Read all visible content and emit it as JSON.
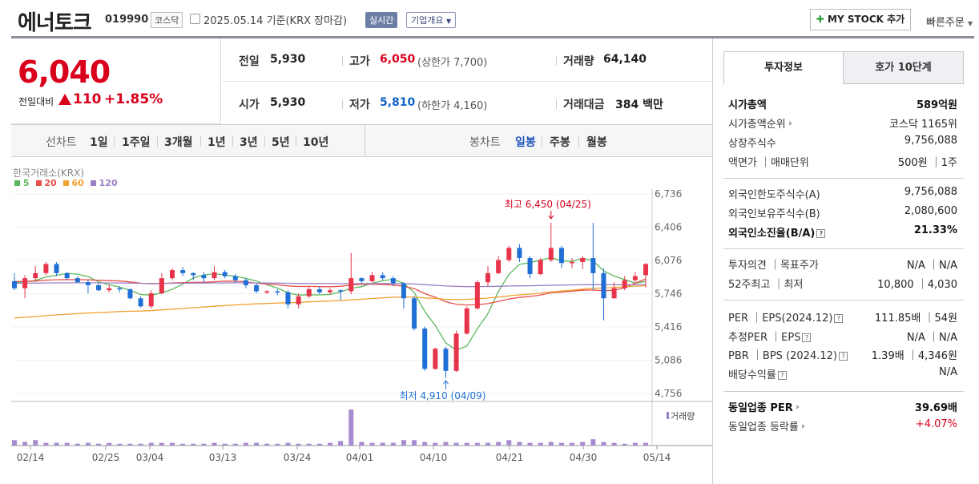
{
  "header": {
    "company_name": "에너토크",
    "code": "019990",
    "market": "코스닥",
    "date_text": "2025.05.14  기준(KRX 장마감)",
    "realtime_label": "실시간",
    "overview_label": "기업개요",
    "mystock_label": "MY STOCK 추가",
    "quickorder_label": "빠른주문"
  },
  "price": {
    "current": "6,040",
    "prev_label": "전일대비",
    "change_amount": "110",
    "change_percent": "+1.85%",
    "direction": "up"
  },
  "stats": {
    "prev_close_label": "전일",
    "prev_close": "5,930",
    "open_label": "시가",
    "open": "5,930",
    "high_label": "고가",
    "high": "6,050",
    "upper_limit": "(상한가 7,700)",
    "low_label": "저가",
    "low": "5,810",
    "lower_limit": "(하한가 4,160)",
    "volume_label": "거래량",
    "volume": "64,140",
    "value_label": "거래대금",
    "value": "384",
    "value_unit": "백만"
  },
  "toolbar": {
    "line_label": "선차트",
    "ranges": [
      "1일",
      "1주일",
      "3개월",
      "1년",
      "3년",
      "5년",
      "10년"
    ],
    "candle_label": "봉차트",
    "candle_periods": [
      "일봉",
      "주봉",
      "월봉"
    ],
    "active_candle": "일봉"
  },
  "chart_data": {
    "type": "candlestick",
    "source_label": "한국거래소(KRX)",
    "ma_legend": [
      {
        "name": "5",
        "color": "#5cb85c"
      },
      {
        "name": "20",
        "color": "#e8504a"
      },
      {
        "name": "60",
        "color": "#f0a030"
      },
      {
        "name": "120",
        "color": "#9b7fc4"
      }
    ],
    "y_ticks": [
      "6,736",
      "6,406",
      "6,076",
      "5,746",
      "5,416",
      "5,086",
      "4,756"
    ],
    "ylim": [
      4756,
      6736
    ],
    "x_ticks": [
      "02/14",
      "02/25",
      "03/04",
      "03/13",
      "03/24",
      "04/01",
      "04/10",
      "04/21",
      "04/30",
      "05/14"
    ],
    "high_annotation": "최고 6,450 (04/25)",
    "low_annotation": "최저 4,910 (04/09)",
    "volume_label": "거래량",
    "candles": [
      [
        5870,
        5800,
        5950,
        5780
      ],
      [
        5800,
        5900,
        5930,
        5700
      ],
      [
        5900,
        5950,
        6020,
        5880
      ],
      [
        5950,
        6040,
        6060,
        5930
      ],
      [
        6040,
        5950,
        6060,
        5920
      ],
      [
        5950,
        5900,
        5960,
        5880
      ],
      [
        5900,
        5860,
        5920,
        5850
      ],
      [
        5860,
        5830,
        5880,
        5750
      ],
      [
        5830,
        5780,
        5850,
        5770
      ],
      [
        5780,
        5800,
        5830,
        5760
      ],
      [
        5800,
        5790,
        5820,
        5760
      ],
      [
        5790,
        5700,
        5800,
        5690
      ],
      [
        5700,
        5620,
        5720,
        5610
      ],
      [
        5620,
        5750,
        5780,
        5600
      ],
      [
        5750,
        5900,
        5950,
        5740
      ],
      [
        5900,
        5980,
        6000,
        5880
      ],
      [
        5980,
        5950,
        6010,
        5920
      ],
      [
        5950,
        5930,
        5960,
        5880
      ],
      [
        5930,
        5900,
        5960,
        5860
      ],
      [
        5900,
        5960,
        6020,
        5880
      ],
      [
        5960,
        5920,
        5980,
        5900
      ],
      [
        5920,
        5880,
        5940,
        5850
      ],
      [
        5880,
        5830,
        5900,
        5800
      ],
      [
        5830,
        5770,
        5850,
        5750
      ],
      [
        5770,
        5770,
        5780,
        5740
      ],
      [
        5770,
        5760,
        5790,
        5730
      ],
      [
        5760,
        5640,
        5780,
        5600
      ],
      [
        5640,
        5720,
        5750,
        5600
      ],
      [
        5720,
        5790,
        5810,
        5700
      ],
      [
        5790,
        5760,
        5820,
        5740
      ],
      [
        5760,
        5780,
        5800,
        5740
      ],
      [
        5780,
        5770,
        5790,
        5680
      ],
      [
        5770,
        5900,
        6150,
        5740
      ],
      [
        5900,
        5870,
        5910,
        5850
      ],
      [
        5870,
        5930,
        5960,
        5860
      ],
      [
        5930,
        5900,
        5960,
        5880
      ],
      [
        5900,
        5850,
        5920,
        5820
      ],
      [
        5850,
        5700,
        5860,
        5600
      ],
      [
        5700,
        5400,
        5720,
        5380
      ],
      [
        5400,
        5000,
        5420,
        4980
      ],
      [
        5000,
        5200,
        5210,
        4990
      ],
      [
        5200,
        4980,
        5220,
        4910
      ],
      [
        4980,
        5350,
        5380,
        4970
      ],
      [
        5350,
        5600,
        5620,
        5340
      ],
      [
        5600,
        5860,
        5880,
        5590
      ],
      [
        5860,
        5950,
        6020,
        5820
      ],
      [
        5950,
        6080,
        6120,
        5940
      ],
      [
        6080,
        6200,
        6220,
        6060
      ],
      [
        6200,
        6100,
        6240,
        6060
      ],
      [
        6100,
        5940,
        6120,
        5900
      ],
      [
        5940,
        6080,
        6100,
        5930
      ],
      [
        6080,
        6200,
        6450,
        6060
      ],
      [
        6200,
        6050,
        6220,
        6000
      ],
      [
        6050,
        6060,
        6100,
        6000
      ],
      [
        6060,
        6100,
        6120,
        5990
      ],
      [
        6100,
        5950,
        6450,
        5780
      ],
      [
        5950,
        5700,
        6000,
        5480
      ],
      [
        5700,
        5800,
        5860,
        5700
      ],
      [
        5800,
        5880,
        5920,
        5780
      ],
      [
        5880,
        5920,
        5960,
        5860
      ],
      [
        5930,
        6040,
        6050,
        5810
      ]
    ],
    "volumes": [
      6,
      4,
      6,
      3,
      3,
      3,
      2,
      3,
      2,
      3,
      2,
      2,
      2,
      3,
      3,
      3,
      2,
      2,
      2,
      3,
      2,
      2,
      3,
      3,
      2,
      2,
      3,
      2,
      2,
      2,
      3,
      5,
      40,
      4,
      3,
      3,
      3,
      6,
      6,
      4,
      3,
      4,
      3,
      3,
      3,
      3,
      4,
      6,
      4,
      3,
      3,
      4,
      3,
      3,
      4,
      7,
      4,
      3,
      2,
      3,
      3
    ]
  },
  "right_panel": {
    "tab1": "투자정보",
    "tab2": "호가 10단계",
    "rows": [
      {
        "k": "시가총액",
        "v": "589억원",
        "bold": true
      },
      {
        "k": "시가총액순위",
        "v": "코스닥 1165위",
        "arrow": true
      },
      {
        "k": "상장주식수",
        "v": "9,756,088"
      },
      {
        "k": "액면가 ｜매매단위",
        "v": "500원 ｜1주"
      },
      {
        "k": "외국인한도주식수(A)",
        "v": "9,756,088"
      },
      {
        "k": "외국인보유주식수(B)",
        "v": "2,080,600"
      },
      {
        "k": "외국인소진율(B/A)",
        "v": "21.33%",
        "bold": true,
        "q": true
      },
      {
        "k": "투자의견 ｜목표주가",
        "v": "N/A ｜N/A"
      },
      {
        "k": "52주최고 ｜최저",
        "v": "10,800 ｜4,030"
      },
      {
        "k": "PER ｜EPS(2024.12)",
        "v": "111.85배 ｜54원",
        "q": true
      },
      {
        "k": "추정PER ｜EPS",
        "v": "N/A ｜N/A",
        "q": true
      },
      {
        "k": "PBR ｜BPS (2024.12)",
        "v": "1.39배 ｜4,346원",
        "q": true
      },
      {
        "k": "배당수익률",
        "v": "N/A",
        "q": true
      },
      {
        "k": "동일업종 PER",
        "v": "39.69배",
        "bold": true,
        "arrow": true
      },
      {
        "k": "동일업종 등락률",
        "v": "+4.07%",
        "arrow": true,
        "red": true
      }
    ]
  }
}
